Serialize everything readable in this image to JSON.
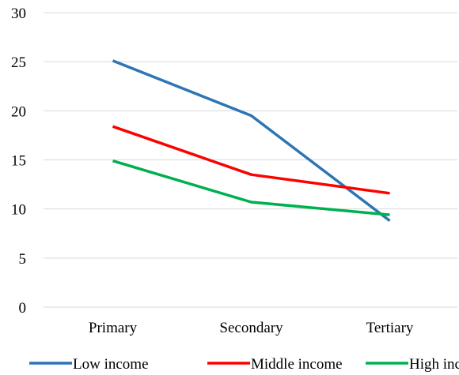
{
  "chart_data": {
    "type": "line",
    "title": "",
    "xlabel": "",
    "ylabel": "",
    "categories": [
      "Primary",
      "Secondary",
      "Tertiary"
    ],
    "ylim": [
      0,
      30
    ],
    "yticks": [
      0,
      5,
      10,
      15,
      20,
      25,
      30
    ],
    "grid": true,
    "legend": "bottom",
    "series": [
      {
        "name": "Low income",
        "color": "#2e75b6",
        "values": [
          25.1,
          19.5,
          8.8
        ]
      },
      {
        "name": "Middle income",
        "color": "#ff0000",
        "values": [
          18.4,
          13.5,
          11.6
        ]
      },
      {
        "name": "High income",
        "color": "#00b050",
        "values": [
          14.9,
          10.7,
          9.4
        ]
      }
    ]
  }
}
